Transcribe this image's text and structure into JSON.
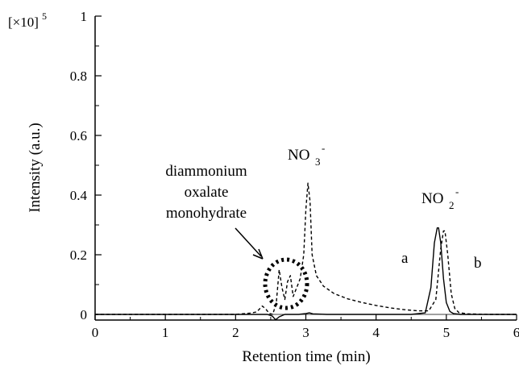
{
  "chart_data": {
    "type": "line",
    "title": "",
    "xlabel": "Retention time (min)",
    "ylabel": "Intensity (a.u.)",
    "y_multiplier": "[×10]",
    "y_multiplier_exp": "5",
    "xlim": [
      0,
      6
    ],
    "ylim": [
      -0.02,
      1
    ],
    "x_ticks": [
      "0",
      "1",
      "2",
      "3",
      "4",
      "5",
      "6"
    ],
    "y_ticks": [
      "0",
      "0.2",
      "0.4",
      "0.6",
      "0.8",
      "1"
    ],
    "grid": false,
    "series": [
      {
        "name": "a",
        "style": "solid",
        "x": [
          0,
          1,
          2,
          2.3,
          2.45,
          2.52,
          2.57,
          2.62,
          2.7,
          2.8,
          2.9,
          3.0,
          3.05,
          3.1,
          3.3,
          3.5,
          4.0,
          4.5,
          4.7,
          4.78,
          4.83,
          4.87,
          4.89,
          4.92,
          4.96,
          5.0,
          5.05,
          5.1,
          5.2,
          5.5,
          6.0
        ],
        "y": [
          0.0,
          0.0,
          0.0,
          0.0,
          0.0,
          -0.005,
          -0.018,
          -0.008,
          0.0,
          0.0,
          0.0,
          0.003,
          0.005,
          0.002,
          0.0,
          0.0,
          0.0,
          0.0,
          0.005,
          0.09,
          0.24,
          0.29,
          0.29,
          0.24,
          0.12,
          0.04,
          0.01,
          0.003,
          0.0,
          0.0,
          0.0
        ]
      },
      {
        "name": "b",
        "style": "dashed",
        "x": [
          0,
          1,
          2,
          2.2,
          2.3,
          2.38,
          2.43,
          2.48,
          2.53,
          2.58,
          2.62,
          2.66,
          2.7,
          2.74,
          2.78,
          2.82,
          2.87,
          2.92,
          2.97,
          3.0,
          3.03,
          3.06,
          3.09,
          3.15,
          3.25,
          3.4,
          3.6,
          3.8,
          4.0,
          4.2,
          4.4,
          4.6,
          4.75,
          4.85,
          4.92,
          4.96,
          4.98,
          5.02,
          5.07,
          5.12,
          5.18,
          5.3,
          5.6,
          6.0
        ],
        "y": [
          0.0,
          0.0,
          0.0,
          0.004,
          0.008,
          0.028,
          0.018,
          0.003,
          0.0,
          0.04,
          0.15,
          0.09,
          0.05,
          0.11,
          0.13,
          0.06,
          0.09,
          0.12,
          0.2,
          0.35,
          0.44,
          0.38,
          0.2,
          0.13,
          0.095,
          0.07,
          0.052,
          0.04,
          0.03,
          0.022,
          0.016,
          0.012,
          0.012,
          0.05,
          0.22,
          0.28,
          0.28,
          0.2,
          0.07,
          0.02,
          0.006,
          0.002,
          0.0,
          0.0
        ]
      }
    ],
    "annotations": {
      "label_a": "a",
      "label_b": "b",
      "no3": "NO",
      "no3_sub": "3",
      "no3_sup": "-",
      "no2": "NO",
      "no2_sub": "2",
      "no2_sup": "-",
      "oxalate_line1": "diammonium",
      "oxalate_line2": "oxalate",
      "oxalate_line3": "monohydrate"
    }
  }
}
